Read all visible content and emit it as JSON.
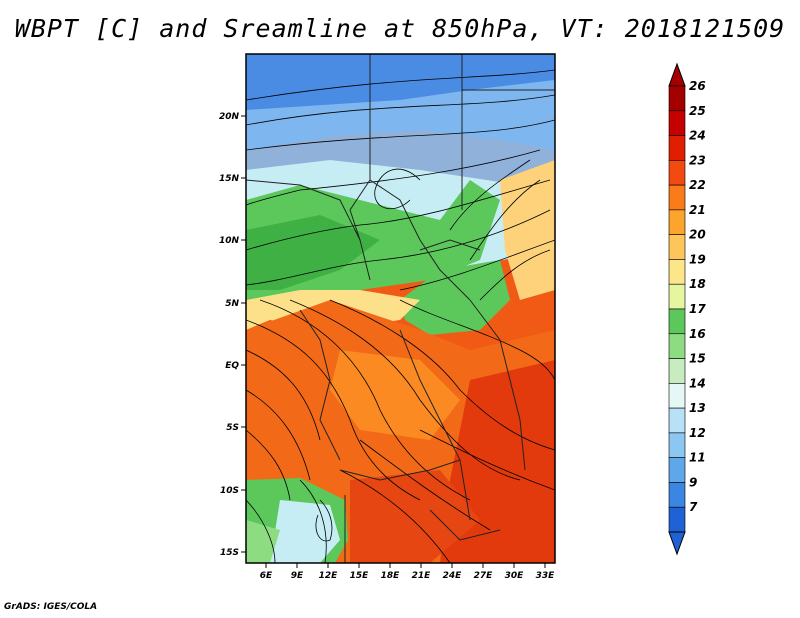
{
  "title": "WBPT [C] and Sreamline at 850hPa, VT: 2018121509",
  "credit": "GrADS: IGES/COLA",
  "map": {
    "lat_labels": [
      "20N",
      "15N",
      "10N",
      "5N",
      "EQ",
      "5S",
      "10S",
      "15S"
    ],
    "lon_labels": [
      "6E",
      "9E",
      "12E",
      "15E",
      "18E",
      "21E",
      "24E",
      "27E",
      "30E",
      "33E"
    ],
    "lat_range": [
      -16,
      25
    ],
    "lon_range": [
      4,
      34
    ]
  },
  "colorbar": {
    "levels": [
      "26",
      "25",
      "24",
      "23",
      "22",
      "21",
      "20",
      "19",
      "18",
      "17",
      "16",
      "15",
      "14",
      "13",
      "12",
      "11",
      "9",
      "7"
    ],
    "colors": [
      "#a50000",
      "#c40000",
      "#e01e00",
      "#f24a10",
      "#fb7a1a",
      "#fda42c",
      "#fdc55a",
      "#fde58a",
      "#e6f5a0",
      "#5cc85c",
      "#8edc82",
      "#c6ecc0",
      "#e6f8f6",
      "#b8e0f6",
      "#8cc6f2",
      "#5ea8ea",
      "#3a86e2",
      "#1e62d6"
    ]
  }
}
